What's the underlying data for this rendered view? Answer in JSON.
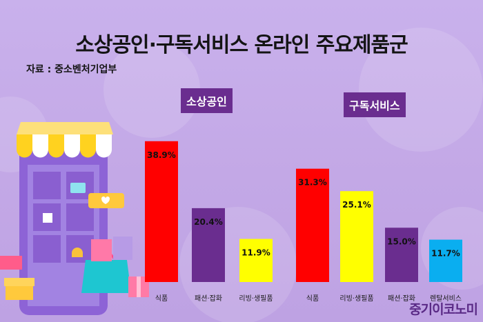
{
  "title": "소상공인·구독서비스 온라인 주요제품군",
  "source": "자료 : 중소벤처기업부",
  "brand": "중기이코노미",
  "chart_data": [
    {
      "type": "bar",
      "title": "소상공인",
      "categories": [
        "식품",
        "패션·잡화",
        "리빙·생필품"
      ],
      "values": [
        38.9,
        20.4,
        11.9
      ],
      "labels": [
        "38.9%",
        "20.4%",
        "11.9%"
      ],
      "colors": [
        "#ff0000",
        "#6a2d8f",
        "#ffff00"
      ]
    },
    {
      "type": "bar",
      "title": "구독서비스",
      "categories": [
        "식품",
        "리빙·생필품",
        "패션·잡화",
        "렌탈서비스"
      ],
      "values": [
        31.3,
        25.1,
        15.0,
        11.7
      ],
      "labels": [
        "31.3%",
        "25.1%",
        "15.0%",
        "11.7%"
      ],
      "colors": [
        "#ff0000",
        "#ffff00",
        "#6a2d8f",
        "#0aaef0"
      ]
    }
  ]
}
